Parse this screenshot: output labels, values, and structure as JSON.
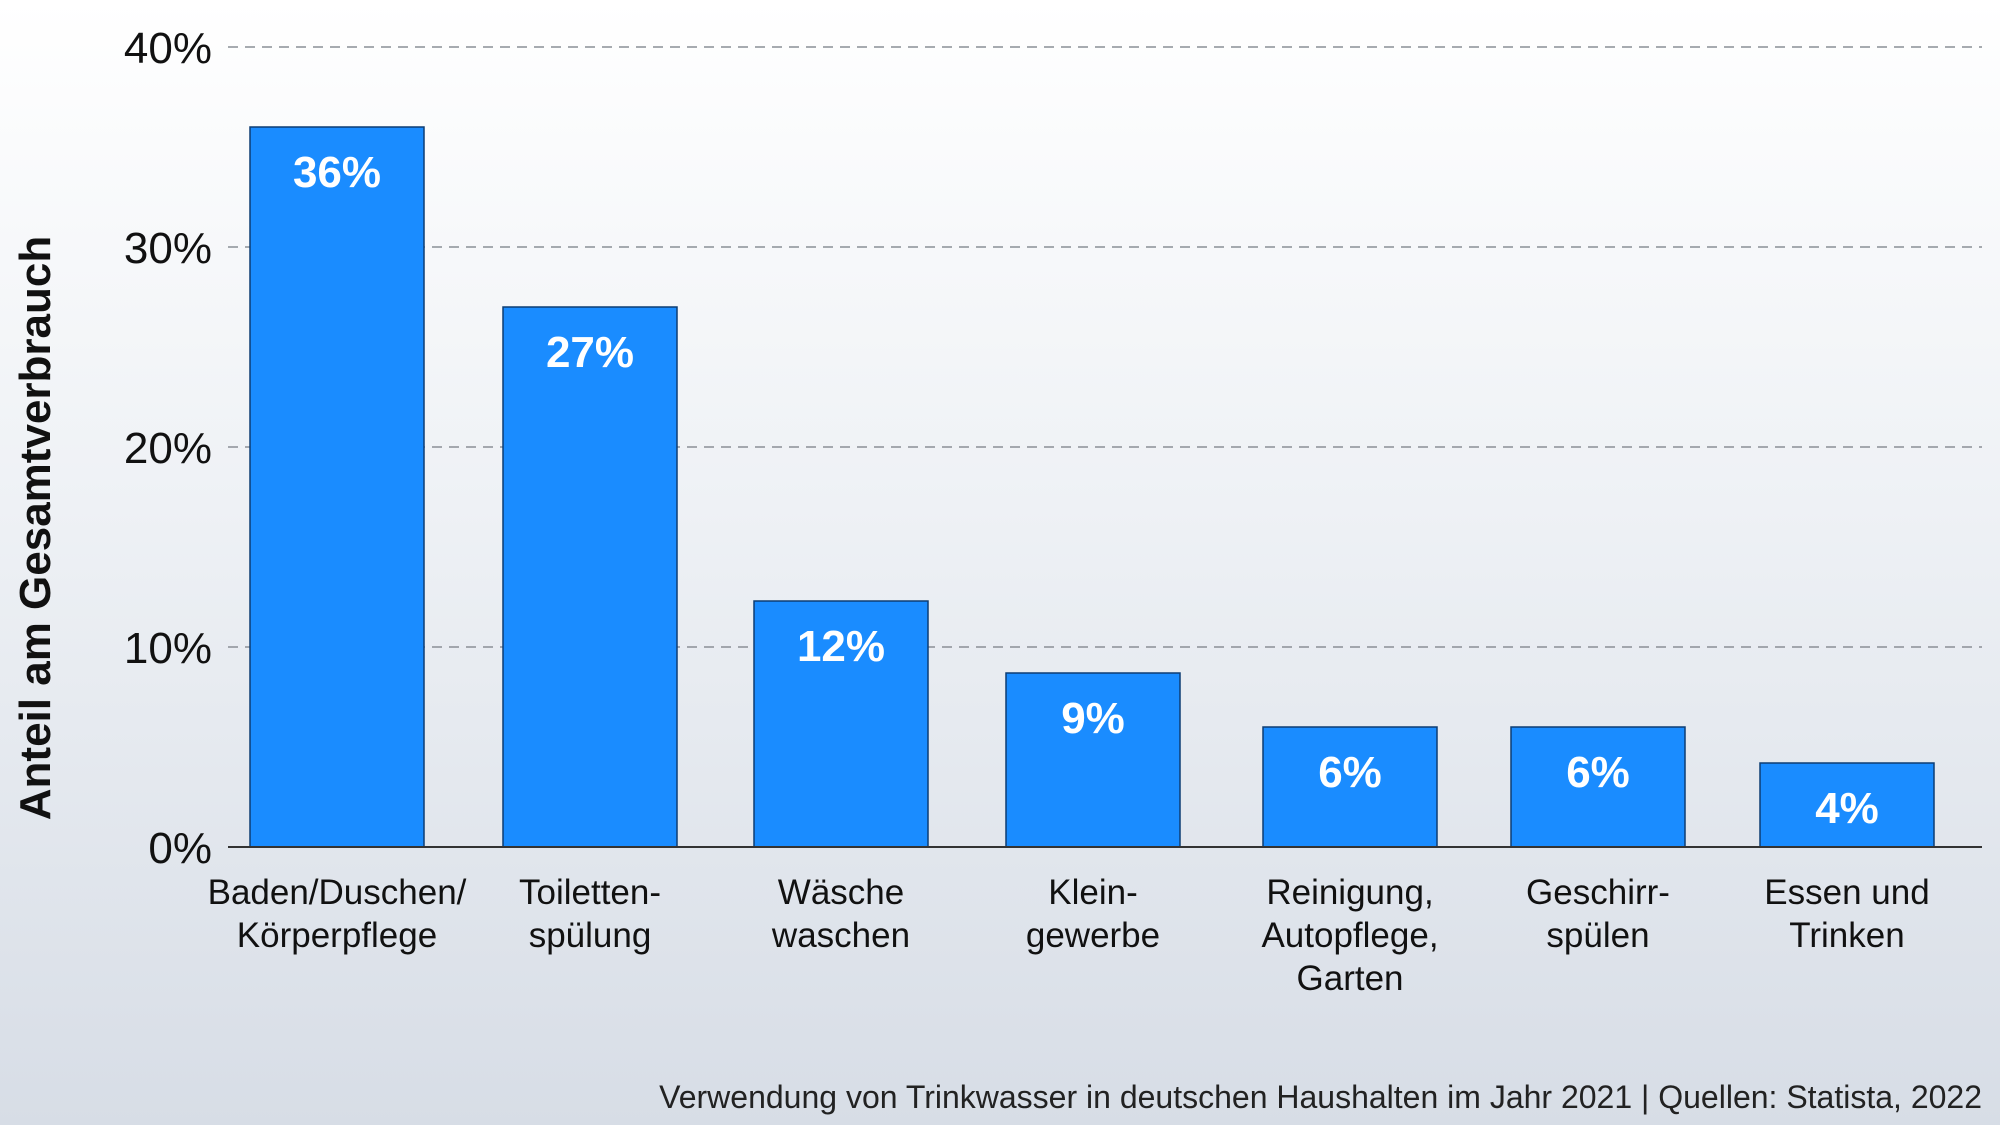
{
  "chart_data": {
    "type": "bar",
    "ylabel": "Anteil am Gesamtverbrauch",
    "ylim": [
      0,
      40
    ],
    "yticks": [
      0,
      10,
      20,
      30,
      40
    ],
    "ytick_labels": [
      "0%",
      "10%",
      "20%",
      "30%",
      "40%"
    ],
    "grid": true,
    "categories": [
      [
        "Baden/Duschen/",
        "Körperpflege"
      ],
      [
        "Toiletten-",
        "spülung"
      ],
      [
        "Wäsche",
        "waschen"
      ],
      [
        "Klein-",
        "gewerbe"
      ],
      [
        "Reinigung,",
        "Autopflege,",
        "Garten"
      ],
      [
        "Geschirr-",
        "spülen"
      ],
      [
        "Essen und",
        "Trinken"
      ]
    ],
    "values": [
      36,
      27,
      12.3,
      8.7,
      6,
      6,
      4.2
    ],
    "value_labels": [
      "36%",
      "27%",
      "12%",
      "9%",
      "6%",
      "6%",
      "4%"
    ],
    "bar_color": "#1a8cff",
    "caption": "Verwendung von Trinkwasser in deutschen Haushalten im Jahr 2021 | Quellen: Statista, 2022"
  }
}
